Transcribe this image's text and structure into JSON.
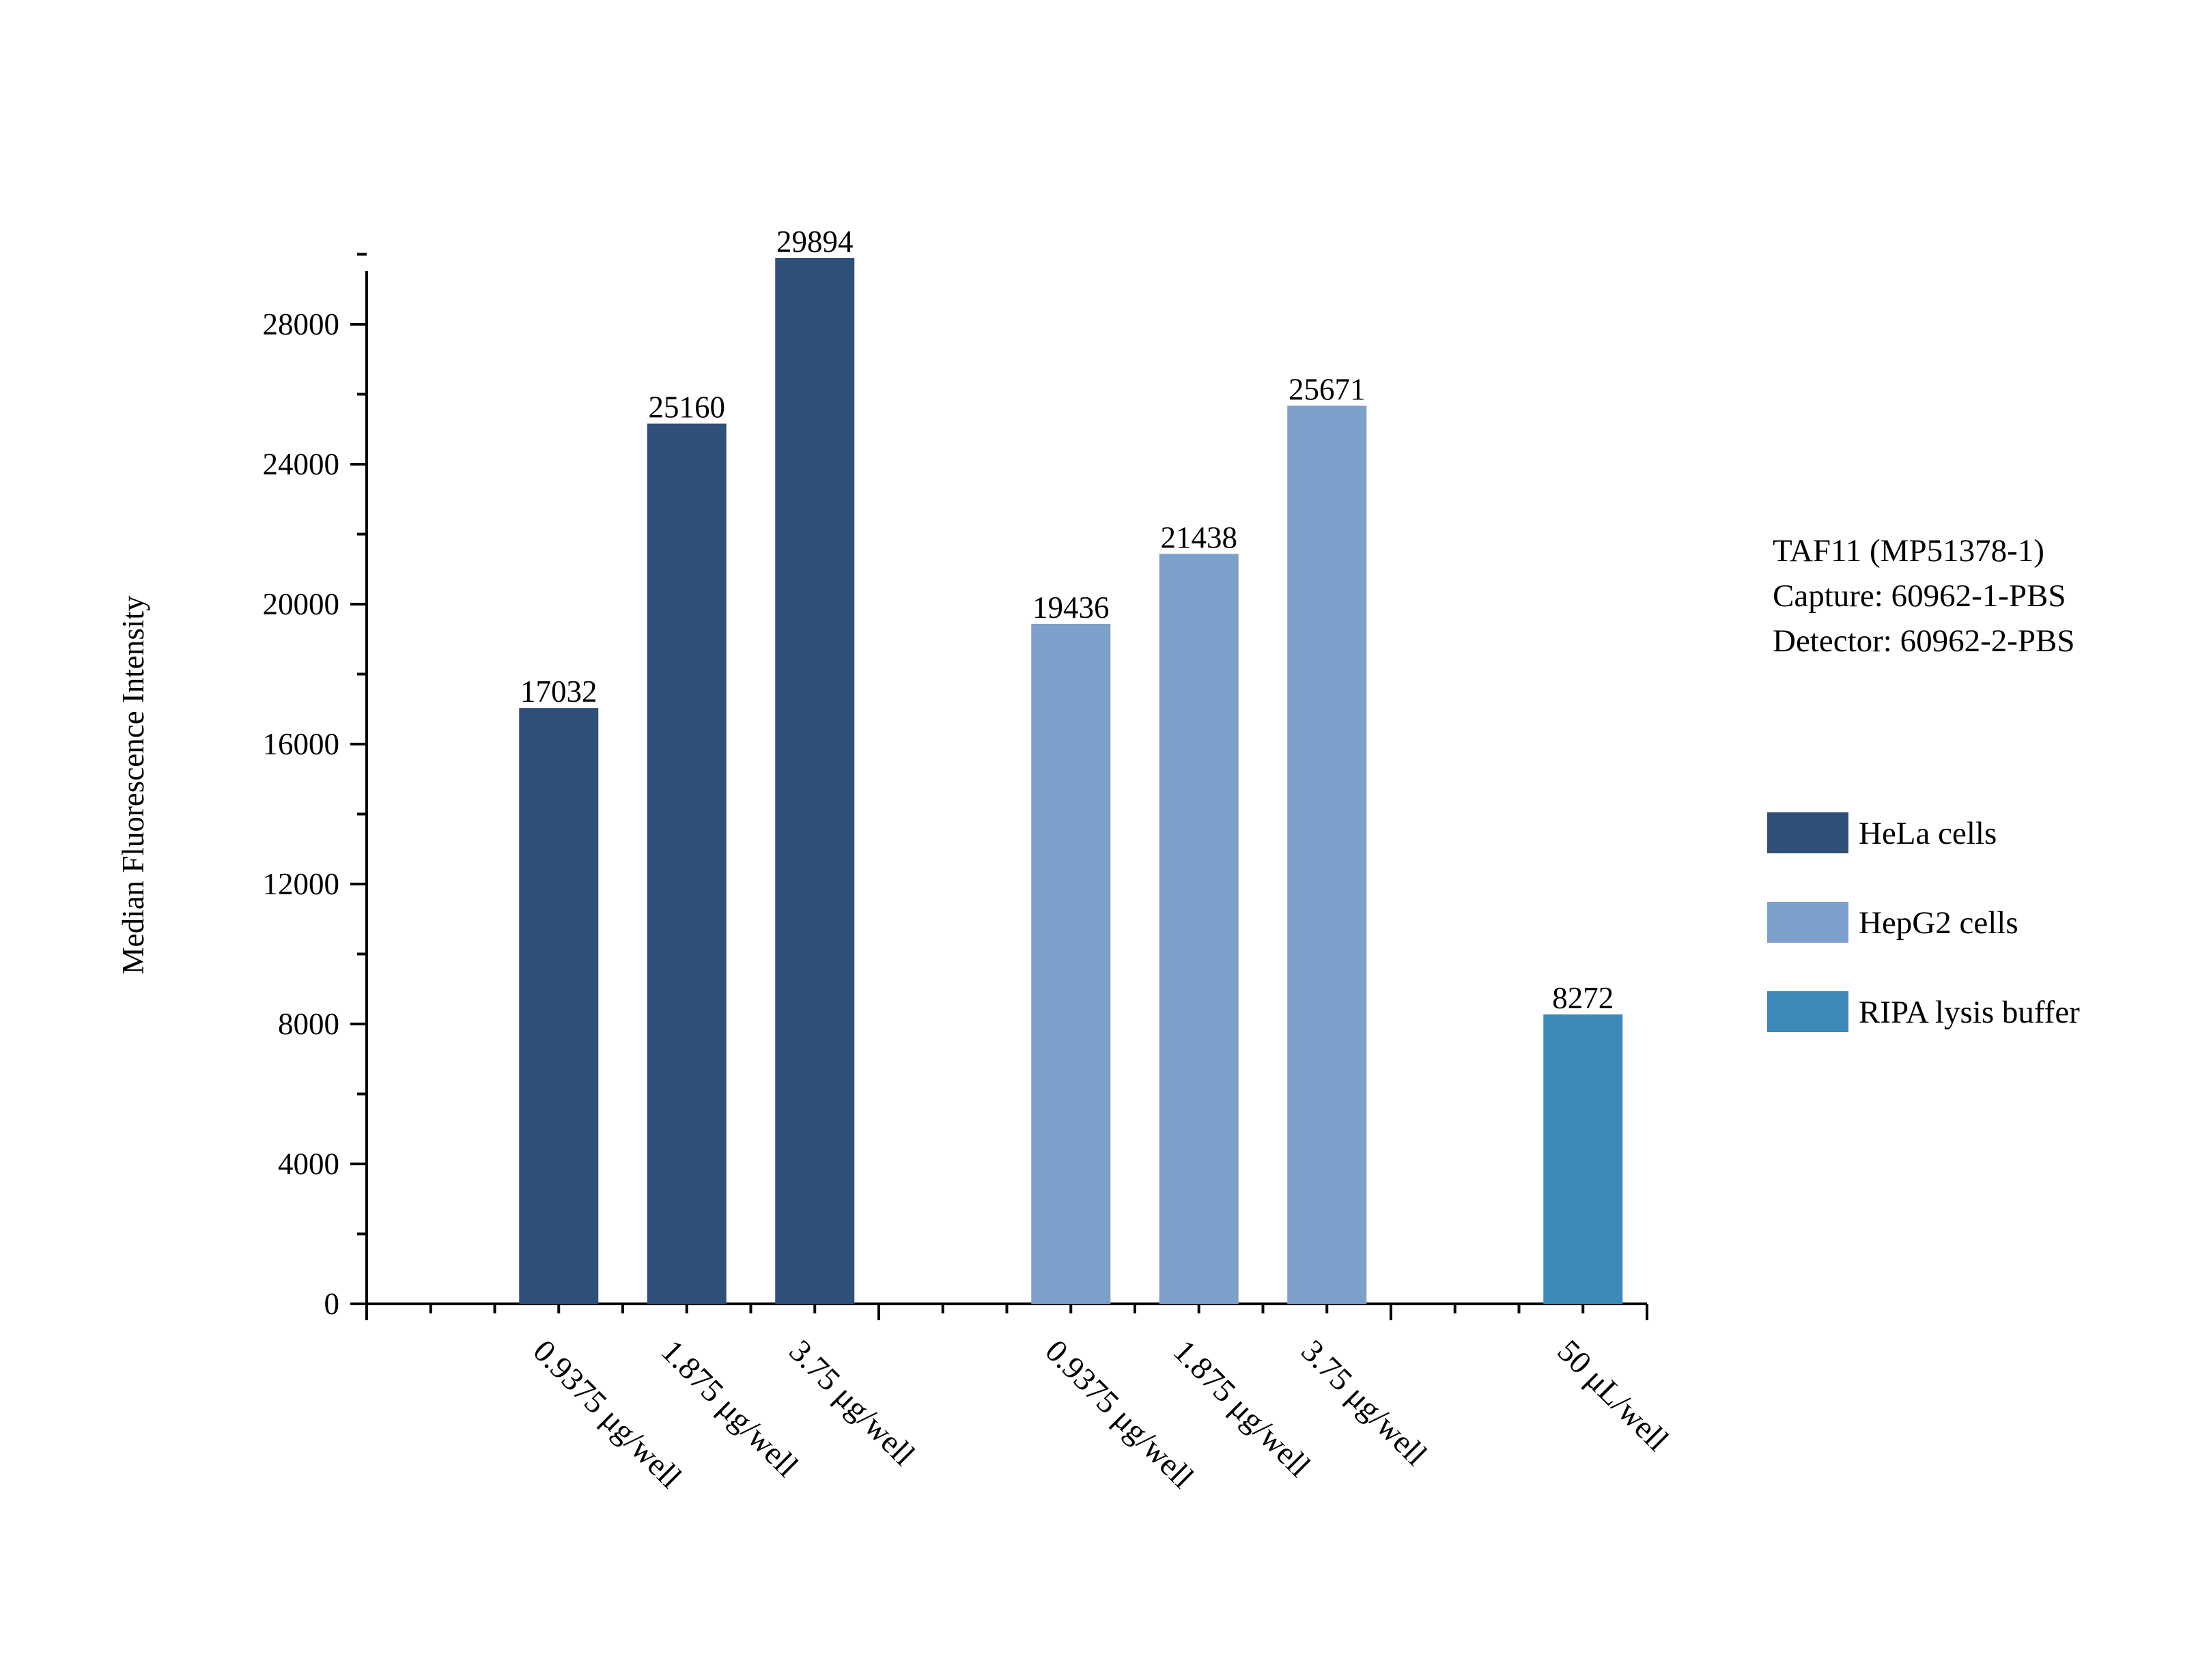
{
  "chart_data": {
    "type": "bar",
    "title": "",
    "ylabel": "Median Fluorescence Intensity",
    "xlabel": "",
    "ylim": [
      0,
      30000
    ],
    "yticks": [
      0,
      4000,
      8000,
      12000,
      16000,
      20000,
      24000,
      28000
    ],
    "slots": 10,
    "bars": [
      {
        "slot": 1,
        "series": 0,
        "category": "0.9375 μg/well",
        "value": 17032
      },
      {
        "slot": 2,
        "series": 0,
        "category": "1.875 μg/well",
        "value": 25160
      },
      {
        "slot": 3,
        "series": 0,
        "category": "3.75 μg/well",
        "value": 29894
      },
      {
        "slot": 5,
        "series": 1,
        "category": "0.9375 μg/well",
        "value": 19436
      },
      {
        "slot": 6,
        "series": 1,
        "category": "1.875 μg/well",
        "value": 21438
      },
      {
        "slot": 7,
        "series": 1,
        "category": "3.75 μg/well",
        "value": 25671
      },
      {
        "slot": 9,
        "series": 2,
        "category": "50 μL/well",
        "value": 8272
      }
    ],
    "series": [
      {
        "name": "HeLa cells",
        "color": "#2f4f78"
      },
      {
        "name": "HepG2 cells",
        "color": "#7d9fcb"
      },
      {
        "name": "RIPA lysis buffer",
        "color": "#3d89b8"
      }
    ],
    "info": [
      "TAF11 (MP51378-1)",
      "Capture: 60962-1-PBS",
      "Detector: 60962-2-PBS"
    ],
    "legend_position": "right"
  }
}
